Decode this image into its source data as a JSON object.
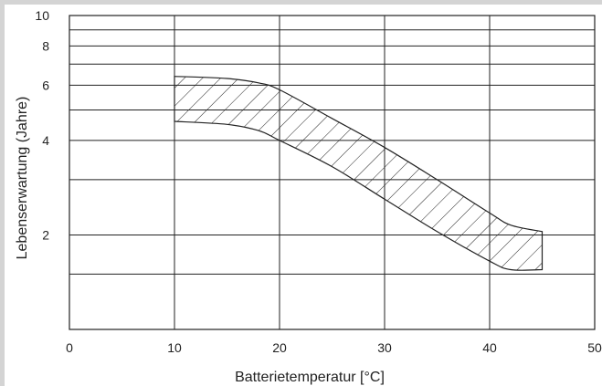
{
  "chart_data": {
    "type": "area",
    "title": "",
    "xlabel": "Batterietemperatur [°C]",
    "ylabel": "Lebenserwartung (Jahre)",
    "xlim": [
      0,
      50
    ],
    "ylim": [
      1,
      10
    ],
    "y_scale": "log",
    "grid": true,
    "x_ticks": [
      "0",
      "10",
      "20",
      "30",
      "40",
      "50"
    ],
    "x_tick_values": [
      0,
      10,
      20,
      30,
      40,
      50
    ],
    "y_ticks": [
      "2",
      "4",
      "6",
      "8",
      "10"
    ],
    "y_tick_values": [
      2,
      4,
      6,
      8,
      10
    ],
    "y_gridlines": [
      1,
      1.5,
      2,
      3,
      4,
      5,
      6,
      7,
      8,
      9,
      10
    ],
    "band_fill": "hatched",
    "upper": {
      "x": [
        10,
        15,
        18,
        20,
        25,
        30,
        35,
        40,
        42,
        45
      ],
      "y": [
        6.4,
        6.3,
        6.1,
        5.8,
        4.7,
        3.8,
        3.0,
        2.35,
        2.15,
        2.05
      ]
    },
    "lower": {
      "x": [
        10,
        15,
        18,
        20,
        25,
        30,
        35,
        40,
        42,
        45
      ],
      "y": [
        4.6,
        4.5,
        4.3,
        4.0,
        3.3,
        2.6,
        2.05,
        1.65,
        1.55,
        1.55
      ]
    },
    "colors": {
      "band_stroke": "#222222",
      "grid": "#222222"
    }
  }
}
